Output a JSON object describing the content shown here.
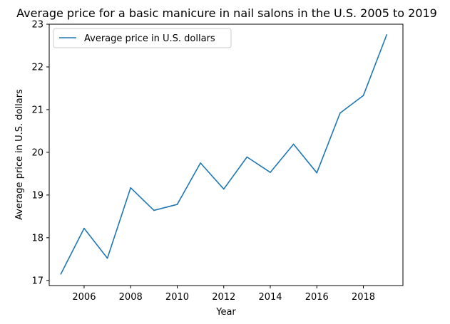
{
  "chart_data": {
    "type": "line",
    "title": "Average price for a basic manicure in nail salons in the U.S. 2005 to 2019",
    "xlabel": "Year",
    "ylabel": "Average price in U.S. dollars",
    "x": [
      2005,
      2006,
      2007,
      2008,
      2009,
      2010,
      2011,
      2012,
      2013,
      2014,
      2015,
      2016,
      2017,
      2018,
      2019
    ],
    "series": [
      {
        "name": "Average price in U.S. dollars",
        "color": "#1f77b4",
        "values": [
          17.15,
          18.22,
          17.52,
          19.17,
          18.64,
          18.78,
          19.75,
          19.14,
          19.89,
          19.53,
          20.19,
          19.52,
          20.92,
          21.33,
          22.75
        ]
      }
    ],
    "xlim": [
      2004.5,
      2019.7
    ],
    "ylim": [
      16.88,
      23.0
    ],
    "xticks": [
      2006,
      2008,
      2010,
      2012,
      2014,
      2016,
      2018
    ],
    "yticks": [
      17,
      18,
      19,
      20,
      21,
      22,
      23
    ],
    "grid": false,
    "legend_position": "top-left"
  }
}
